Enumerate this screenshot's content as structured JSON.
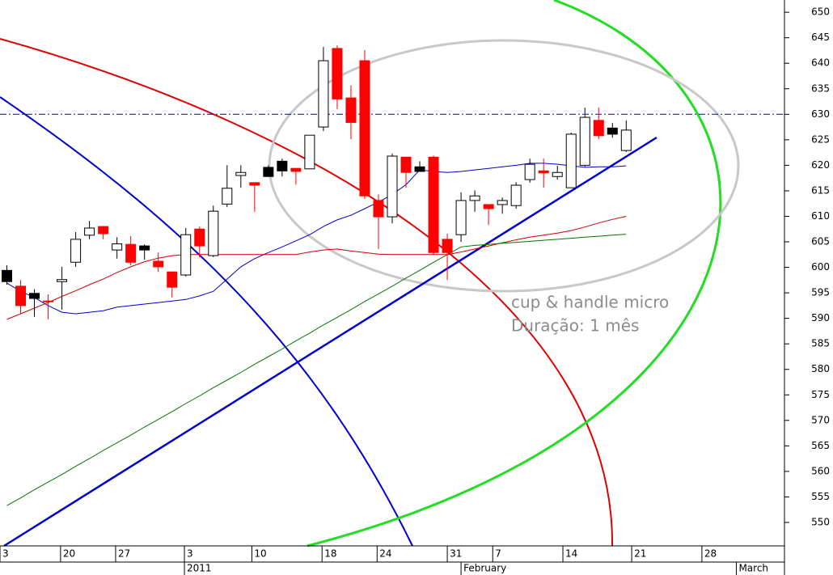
{
  "chart_data": {
    "type": "candlestick",
    "xlim": [
      -0.5,
      56.5
    ],
    "ylim": [
      545.4,
      652.4
    ],
    "yticks": [
      550,
      555,
      560,
      565,
      570,
      575,
      580,
      585,
      590,
      595,
      600,
      605,
      610,
      615,
      620,
      625,
      630,
      635,
      640,
      645,
      650
    ],
    "xticks": [
      {
        "value": -0.5,
        "label": "3"
      },
      {
        "value": 3.9,
        "label": "20"
      },
      {
        "value": 7.9,
        "label": "27"
      },
      {
        "value": 12.9,
        "label": "3"
      },
      {
        "value": 17.8,
        "label": "10"
      },
      {
        "value": 22.9,
        "label": "18"
      },
      {
        "value": 26.9,
        "label": "24"
      },
      {
        "value": 32,
        "label": "31"
      },
      {
        "value": 35.3,
        "label": "7"
      },
      {
        "value": 40.4,
        "label": "14"
      },
      {
        "value": 45.4,
        "label": "21"
      },
      {
        "value": 50.5,
        "label": "28"
      }
    ],
    "month_ticks": [
      {
        "value": 12.9,
        "label": "2011"
      },
      {
        "value": 33,
        "label": "February"
      },
      {
        "value": 53,
        "label": "March"
      }
    ],
    "open": [
      599.4,
      596.3,
      594.9,
      593.4,
      597.2,
      601.0,
      606.3,
      608.0,
      603.4,
      604.5,
      604.2,
      601.2,
      599.1,
      598.5,
      607.5,
      602.3,
      612.4,
      618.0,
      616.6,
      619.6,
      620.8,
      619.4,
      619.3,
      627.5,
      642.9,
      633.2,
      640.5,
      613.1,
      609.9,
      621.6,
      619.7,
      621.6,
      605.5,
      606.4,
      613.1,
      612.3,
      612.3,
      612.1,
      617.2,
      618.9,
      617.8,
      615.6,
      620.0,
      628.8,
      627.3,
      622.9
    ],
    "high": [
      600.4,
      597.5,
      595.7,
      594.7,
      600.1,
      606.9,
      609.1,
      608.0,
      605.9,
      606.1,
      604.5,
      602.9,
      599.1,
      607.7,
      608.0,
      612.1,
      620.0,
      620.0,
      616.6,
      620.0,
      621.3,
      619.4,
      625.9,
      643.2,
      643.5,
      635.7,
      642.6,
      614.3,
      622.3,
      621.6,
      620.8,
      621.9,
      606.6,
      614.7,
      615.1,
      612.3,
      613.7,
      616.7,
      621.3,
      621.3,
      619.9,
      626.4,
      631.3,
      631.3,
      628.3,
      628.8
    ],
    "low": [
      596.6,
      590.9,
      590.3,
      589.8,
      591.7,
      600.1,
      605.5,
      605.5,
      601.7,
      600.4,
      601.5,
      599.1,
      594.1,
      598.2,
      602.0,
      602.0,
      611.8,
      615.6,
      610.9,
      617.8,
      617.8,
      616.2,
      619.3,
      626.7,
      631.0,
      625.1,
      613.4,
      603.6,
      608.6,
      615.6,
      618.8,
      602.6,
      597.5,
      605.0,
      610.9,
      608.3,
      610.5,
      611.5,
      616.6,
      615.6,
      617.2,
      615.6,
      619.7,
      625.1,
      625.4,
      622.6
    ],
    "close": [
      597.2,
      592.5,
      593.9,
      593.3,
      597.6,
      605.5,
      607.7,
      606.6,
      604.6,
      601.0,
      603.4,
      600.1,
      596.1,
      606.4,
      604.2,
      611.0,
      615.5,
      618.6,
      616.1,
      617.8,
      618.9,
      618.8,
      625.9,
      640.5,
      633.0,
      628.4,
      614.0,
      609.9,
      621.8,
      618.6,
      618.8,
      602.9,
      602.9,
      613.1,
      614.0,
      611.5,
      613.1,
      616.1,
      620.2,
      618.5,
      618.6,
      626.1,
      629.4,
      625.8,
      626.1,
      626.9
    ],
    "colors": [
      "#000000",
      "#ff0000",
      "#000000",
      "#ff0000",
      "#ffffff",
      "#ffffff",
      "#ffffff",
      "#ff0000",
      "#ffffff",
      "#ff0000",
      "#000000",
      "#ff0000",
      "#ff0000",
      "#ffffff",
      "#ff0000",
      "#ffffff",
      "#ffffff",
      "#ffffff",
      "#ff0000",
      "#000000",
      "#000000",
      "#ff0000",
      "#ffffff",
      "#ffffff",
      "#ff0000",
      "#ff0000",
      "#ff0000",
      "#ff0000",
      "#ffffff",
      "#ff0000",
      "#000000",
      "#ff0000",
      "#ff0000",
      "#ffffff",
      "#ffffff",
      "#ff0000",
      "#ffffff",
      "#ffffff",
      "#ffffff",
      "#ff0000",
      "#ffffff",
      "#ffffff",
      "#ffffff",
      "#ff0000",
      "#000000",
      "#ffffff"
    ],
    "lines": [
      {
        "color": "#0000cc",
        "values": [
          596.9,
          595.3,
          594.1,
          592.5,
          591.2,
          590.9,
          591.2,
          591.5,
          592.2,
          592.5,
          592.8,
          593.1,
          593.4,
          593.7,
          594.4,
          595.3,
          597.7,
          600.1,
          601.7,
          602.9,
          604.0,
          605.2,
          606.4,
          608.0,
          609.3,
          610.2,
          611.5,
          612.8,
          614.3,
          616.2,
          619.1,
          618.8,
          618.6,
          618.8,
          619.1,
          619.4,
          619.7,
          620.0,
          620.4,
          620.4,
          620.2,
          619.9,
          619.6,
          619.7,
          619.7,
          619.9
        ]
      },
      {
        "color": "#cc0000",
        "values": [
          589.8,
          590.9,
          592.0,
          593.1,
          594.3,
          595.4,
          596.6,
          597.7,
          599.0,
          600.1,
          601.1,
          601.8,
          602.3,
          602.5,
          602.5,
          602.5,
          602.5,
          602.5,
          602.5,
          602.5,
          602.5,
          602.5,
          603.0,
          603.4,
          603.6,
          603.2,
          602.9,
          602.6,
          602.5,
          602.5,
          602.5,
          602.5,
          602.5,
          603.0,
          603.6,
          604.2,
          604.8,
          605.4,
          605.9,
          606.3,
          606.7,
          607.2,
          607.9,
          608.7,
          609.4,
          610.0
        ]
      },
      {
        "color": "#007700",
        "values": [
          553.3,
          554.8,
          556.4,
          557.9,
          559.4,
          561.0,
          562.5,
          564.1,
          565.6,
          567.1,
          568.7,
          570.2,
          571.7,
          573.3,
          574.8,
          576.4,
          577.9,
          579.4,
          581.0,
          582.5,
          584.0,
          585.6,
          587.1,
          588.7,
          590.2,
          591.7,
          593.3,
          594.8,
          596.3,
          597.9,
          599.4,
          601.0,
          602.5,
          604.0,
          604.3,
          604.5,
          604.7,
          604.9,
          605.1,
          605.3,
          605.5,
          605.7,
          605.9,
          606.1,
          606.3,
          606.5
        ]
      }
    ],
    "hline": {
      "value": 630,
      "color": "#0000cc"
    },
    "annotations": [
      "cup & handle micro",
      "Duração: 1 mês"
    ]
  }
}
